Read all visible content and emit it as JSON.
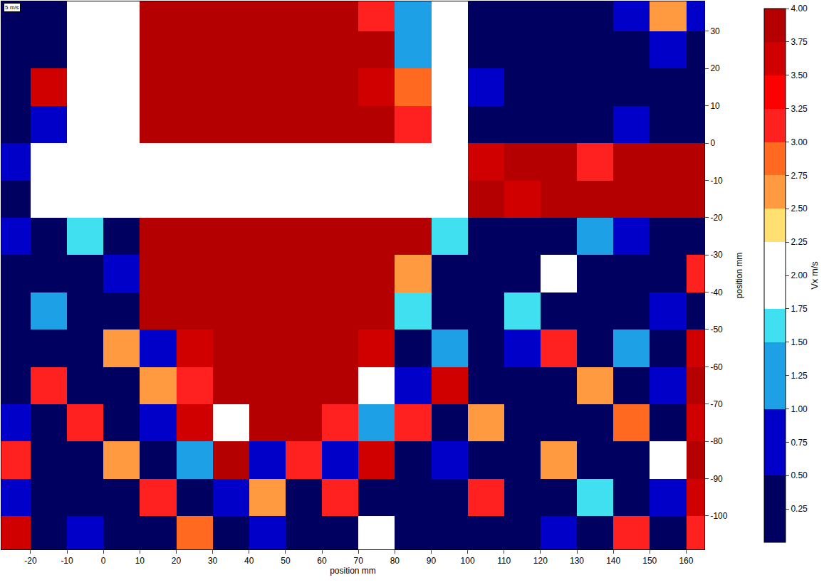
{
  "chart_data": {
    "type": "heatmap",
    "x_label": "position mm",
    "y_label": "position mm",
    "colorbar_title": "Vx m/s",
    "annotations": [
      {
        "text": "5 m/s"
      }
    ],
    "xlim": [
      -28,
      165
    ],
    "ylim": [
      -109,
      38
    ],
    "xticks": [
      -20,
      -10,
      0,
      10,
      20,
      30,
      40,
      50,
      60,
      70,
      80,
      90,
      100,
      110,
      120,
      130,
      140,
      150,
      160
    ],
    "yticks": [
      -100,
      -90,
      -80,
      -70,
      -60,
      -50,
      -40,
      -30,
      -20,
      -10,
      0,
      10,
      20,
      30
    ],
    "colorbar_range": [
      0,
      4
    ],
    "colorbar_ticks": [
      0.25,
      {
        "value": 0.5,
        "label": "0.50"
      },
      0.75,
      {
        "value": 1,
        "label": "1.00"
      },
      1.25,
      {
        "value": 1.5,
        "label": "1.50"
      },
      1.75,
      {
        "value": 2,
        "label": "2.00"
      },
      2.25,
      {
        "value": 2.5,
        "label": "2.50"
      },
      2.75,
      {
        "value": 3,
        "label": "3.00"
      },
      3.25,
      {
        "value": 3.5,
        "label": "3.50"
      },
      3.75,
      {
        "value": 4,
        "label": "4.00"
      }
    ],
    "colors": [
      "#000060",
      "#000060",
      "#0000c8",
      "#0000c8",
      "#1ea0e6",
      "#1ea0e6",
      "#40e0f0",
      "#ffffff",
      "#ffffff",
      "#ffe070",
      "#ff9a40",
      "#ff6a20",
      "#ff2020",
      "#ff0000",
      "#d00000",
      "#b40000"
    ],
    "x": [
      -25,
      -15,
      -5,
      5,
      15,
      25,
      35,
      45,
      55,
      65,
      75,
      85,
      95,
      105,
      115,
      125,
      135,
      145,
      155,
      165
    ],
    "y": [
      -105,
      -95,
      -85,
      -75,
      -65,
      -55,
      -45,
      -35,
      -25,
      -15,
      -5,
      5,
      15,
      25,
      35
    ],
    "z": [
      [
        3.5,
        0.3,
        0.5,
        0.3,
        0.4,
        2.8,
        0.3,
        0.5,
        0.3,
        0.4,
        2.2,
        0.3,
        0.4,
        0.3,
        0.3,
        0.6,
        0.3,
        3.2,
        0.4,
        3.0
      ],
      [
        0.6,
        0.3,
        0.4,
        0.3,
        3.0,
        0.3,
        0.5,
        2.5,
        0.4,
        3.0,
        0.3,
        0.4,
        0.3,
        3.0,
        0.3,
        0.4,
        1.5,
        0.3,
        0.5,
        3.5
      ],
      [
        3.0,
        0.4,
        0.3,
        2.5,
        0.4,
        1.0,
        3.8,
        0.5,
        3.2,
        0.6,
        3.5,
        0.3,
        0.5,
        0.3,
        0.3,
        2.5,
        0.4,
        0.3,
        1.8,
        3.9
      ],
      [
        0.5,
        0.3,
        3.2,
        0.3,
        0.6,
        3.5,
        2.0,
        3.9,
        4,
        3.0,
        1.0,
        3.0,
        0.3,
        2.5,
        0.4,
        0.3,
        0.3,
        2.8,
        0.4,
        3.5
      ],
      [
        0.3,
        3.0,
        0.4,
        0.3,
        2.5,
        3.0,
        4,
        4,
        4,
        3.9,
        2.0,
        0.5,
        3.5,
        0.3,
        0.3,
        0.4,
        2.5,
        0.3,
        0.5,
        3.8
      ],
      [
        0.3,
        0.3,
        0.2,
        2.5,
        0.5,
        3.5,
        4,
        4,
        4,
        4,
        3.6,
        0.4,
        1.0,
        0.3,
        0.5,
        3.0,
        0.3,
        1.0,
        0.3,
        3.5
      ],
      [
        0.2,
        1.0,
        0.3,
        0.3,
        3.8,
        4,
        4,
        4,
        4,
        4,
        3.9,
        1.5,
        0.3,
        0.4,
        1.5,
        0.3,
        0.3,
        0.4,
        0.5,
        0.3
      ],
      [
        0.3,
        0.2,
        0.3,
        0.5,
        4,
        4,
        4,
        4,
        4,
        4,
        4,
        2.5,
        0.4,
        0.3,
        0.2,
        2.0,
        0.3,
        0.2,
        0.3,
        3.0
      ],
      [
        0.5,
        0.4,
        1.5,
        0.3,
        4,
        4,
        4,
        4,
        4,
        4,
        4,
        3.9,
        1.5,
        0.3,
        0.4,
        0.3,
        1.2,
        0.5,
        0.3,
        0.3
      ],
      [
        0.3,
        null,
        null,
        null,
        null,
        null,
        null,
        null,
        null,
        null,
        null,
        null,
        null,
        3.9,
        3.5,
        3.8,
        3.9,
        4,
        3.9,
        3.8
      ],
      [
        0.5,
        null,
        null,
        null,
        null,
        null,
        null,
        null,
        null,
        null,
        null,
        null,
        null,
        3.6,
        4,
        3.8,
        3.0,
        3.9,
        4,
        3.9
      ],
      [
        0.3,
        0.5,
        null,
        null,
        4,
        4,
        4,
        4,
        4,
        4,
        3.9,
        3.2,
        null,
        0.4,
        0.2,
        0.2,
        0.3,
        0.5,
        0.2,
        0.2
      ],
      [
        0.3,
        3.6,
        null,
        null,
        4,
        4,
        4,
        4,
        4,
        4,
        3.5,
        2.8,
        null,
        0.5,
        0.2,
        0.2,
        0.2,
        0.2,
        0.3,
        0.2
      ],
      [
        0.4,
        0.3,
        null,
        null,
        4,
        4,
        4,
        4,
        4,
        4,
        3.8,
        1.2,
        null,
        0.4,
        0.2,
        0.2,
        0.2,
        0.3,
        0.6,
        0.3
      ],
      [
        0.2,
        0.3,
        null,
        null,
        4,
        4,
        4,
        4,
        4,
        3.9,
        3.0,
        1.0,
        null,
        0.2,
        0.2,
        0.2,
        0.3,
        0.5,
        2.5,
        0.8
      ]
    ]
  }
}
